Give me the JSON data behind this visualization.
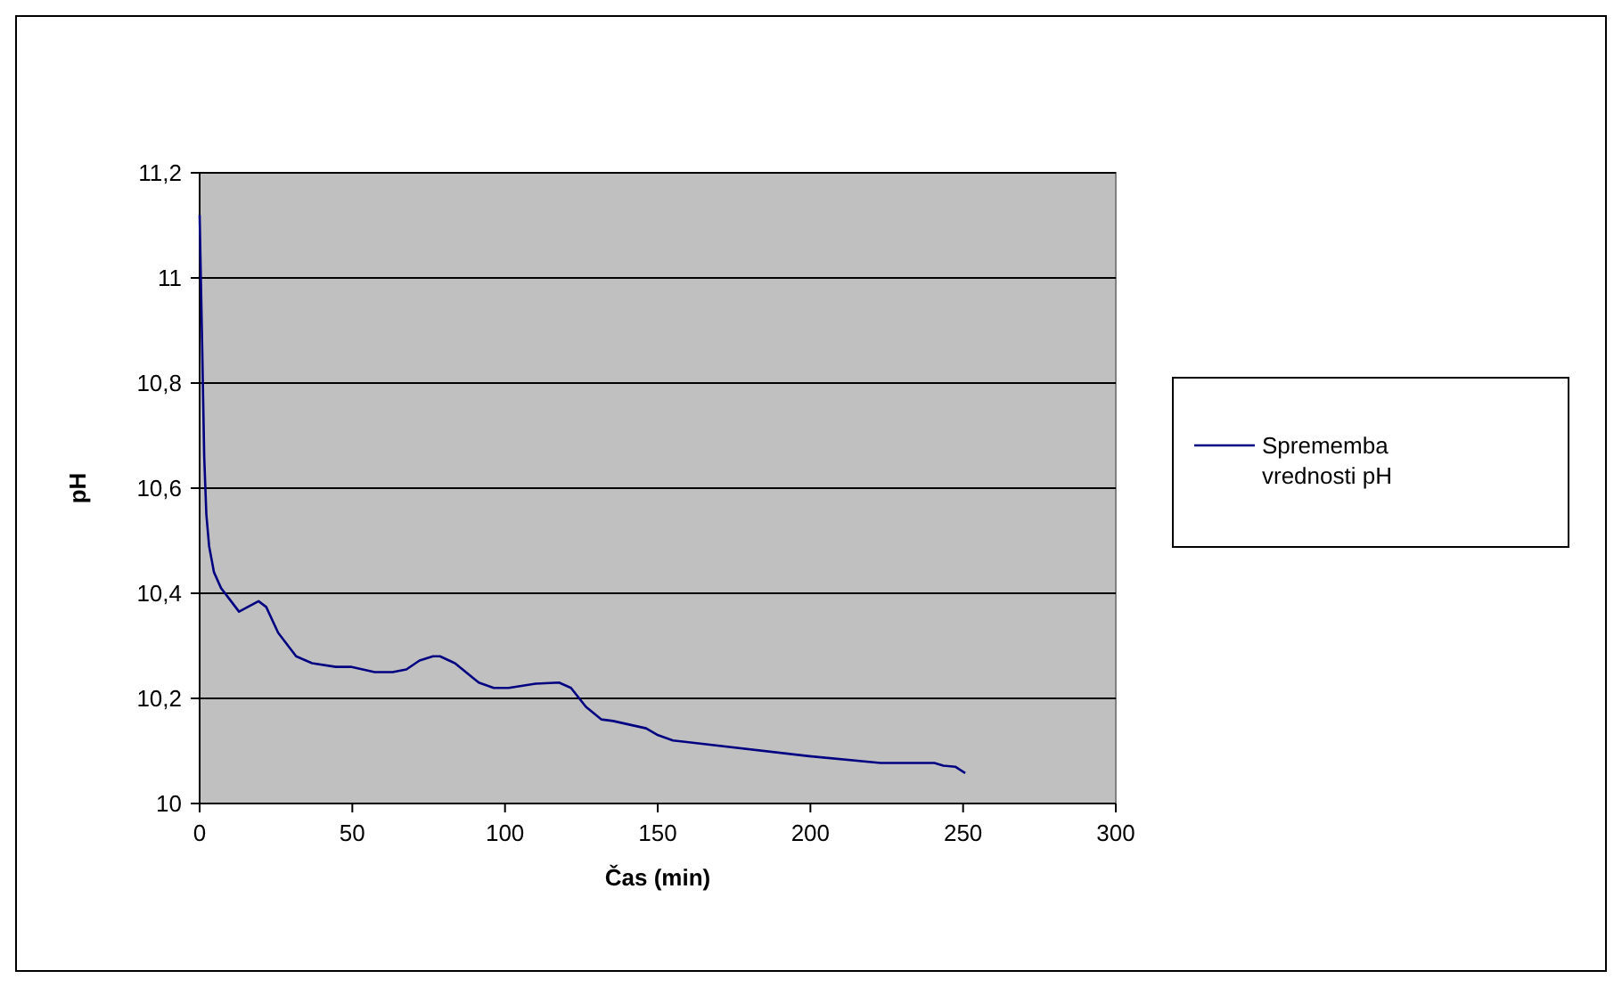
{
  "chart_data": {
    "type": "line",
    "xlabel": "Čas (min)",
    "ylabel": "pH",
    "xlim": [
      0,
      300
    ],
    "xticks": [
      0,
      50,
      100,
      150,
      200,
      250,
      300
    ],
    "ylim": [
      10,
      11.2
    ],
    "yticks": [
      {
        "value": 10,
        "label": "10"
      },
      {
        "value": 10.2,
        "label": "10,2"
      },
      {
        "value": 10.4,
        "label": "10,4"
      },
      {
        "value": 10.6,
        "label": "10,6"
      },
      {
        "value": 10.8,
        "label": "10,8"
      },
      {
        "value": 11,
        "label": "11"
      },
      {
        "value": 11.2,
        "label": "11,2"
      }
    ],
    "grid": "y",
    "legend": "right",
    "marker": "none",
    "line_style": "solid",
    "series": [
      {
        "name": "Sprememba vrednosti pH",
        "color": "#000080",
        "x": [
          0,
          0.8,
          1.5,
          2.2,
          3.1,
          4.7,
          7,
          12.9,
          19.3,
          21.8,
          25.7,
          31.6,
          36.8,
          44.6,
          49.5,
          57.3,
          63.2,
          67.7,
          72,
          76.4,
          78.7,
          83.6,
          91.4,
          96.3,
          101.2,
          110,
          117.7,
          121.6,
          126.5,
          131.5,
          135.4,
          146.2,
          150.1,
          155,
          199.6,
          223,
          240.6,
          243.5,
          247.4,
          250.7
        ],
        "values": [
          11.12,
          10.88,
          10.66,
          10.55,
          10.49,
          10.44,
          10.41,
          10.365,
          10.385,
          10.374,
          10.325,
          10.28,
          10.267,
          10.26,
          10.26,
          10.25,
          10.25,
          10.255,
          10.272,
          10.28,
          10.28,
          10.267,
          10.23,
          10.22,
          10.22,
          10.228,
          10.23,
          10.22,
          10.184,
          10.16,
          10.157,
          10.143,
          10.13,
          10.12,
          10.09,
          10.077,
          10.077,
          10.072,
          10.07,
          10.058
        ]
      }
    ]
  }
}
